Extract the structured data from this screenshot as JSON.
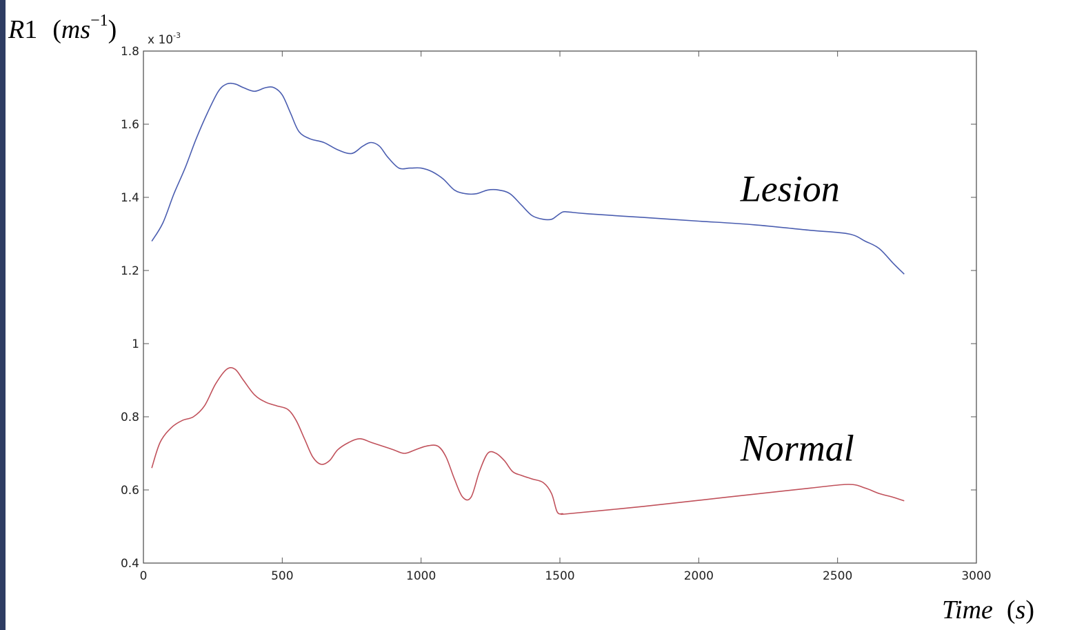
{
  "chart_data": {
    "type": "line",
    "ylabel": {
      "var": "R",
      "sub": "1",
      "unit_open": "(",
      "unit_var": "ms",
      "unit_exp": "−1",
      "unit_close": ")"
    },
    "xlabel": {
      "var": "Time",
      "unit_open": "(",
      "unit_var": "s",
      "unit_close": ")"
    },
    "y_exponent_label": {
      "prefix": "x 10",
      "exp": "-3"
    },
    "xlim": [
      0,
      3000
    ],
    "ylim": [
      0.4,
      1.8
    ],
    "x_ticks": [
      "0",
      "500",
      "1000",
      "1500",
      "2000",
      "2500",
      "3000"
    ],
    "y_ticks": [
      "0.4",
      "0.6",
      "0.8",
      "1",
      "1.2",
      "1.4",
      "1.6",
      "1.8"
    ],
    "grid": false,
    "annotations": [
      {
        "text": "Lesion",
        "x": 2150,
        "y": 1.39
      },
      {
        "text": "Normal",
        "x": 2150,
        "y": 0.68
      }
    ],
    "series": [
      {
        "key": "lesion",
        "color": "#4a5db0",
        "x": [
          30,
          70,
          110,
          150,
          190,
          230,
          270,
          300,
          330,
          360,
          400,
          440,
          470,
          500,
          530,
          560,
          600,
          650,
          700,
          750,
          790,
          820,
          850,
          880,
          920,
          960,
          1000,
          1040,
          1080,
          1120,
          1160,
          1200,
          1240,
          1280,
          1320,
          1360,
          1400,
          1440,
          1470,
          1490,
          1510,
          1530,
          1600,
          1800,
          2000,
          2200,
          2400,
          2540,
          2600,
          2650,
          2700,
          2740
        ],
        "y": [
          1.28,
          1.33,
          1.41,
          1.48,
          1.56,
          1.63,
          1.69,
          1.71,
          1.71,
          1.7,
          1.69,
          1.7,
          1.7,
          1.68,
          1.63,
          1.58,
          1.56,
          1.55,
          1.53,
          1.52,
          1.54,
          1.55,
          1.54,
          1.51,
          1.48,
          1.48,
          1.48,
          1.47,
          1.45,
          1.42,
          1.41,
          1.41,
          1.42,
          1.42,
          1.41,
          1.38,
          1.35,
          1.34,
          1.34,
          1.35,
          1.36,
          1.36,
          1.355,
          1.345,
          1.335,
          1.325,
          1.31,
          1.3,
          1.28,
          1.26,
          1.22,
          1.19
        ]
      },
      {
        "key": "normal",
        "color": "#c0505a",
        "x": [
          30,
          60,
          100,
          140,
          180,
          220,
          260,
          300,
          330,
          360,
          400,
          440,
          480,
          520,
          550,
          580,
          610,
          640,
          670,
          700,
          740,
          780,
          820,
          860,
          900,
          940,
          980,
          1020,
          1060,
          1090,
          1120,
          1150,
          1180,
          1210,
          1240,
          1270,
          1300,
          1330,
          1360,
          1400,
          1440,
          1470,
          1490,
          1510,
          1530,
          1800,
          2100,
          2400,
          2540,
          2600,
          2650,
          2700,
          2740
        ],
        "y": [
          0.66,
          0.73,
          0.77,
          0.79,
          0.8,
          0.83,
          0.89,
          0.93,
          0.93,
          0.9,
          0.86,
          0.84,
          0.83,
          0.82,
          0.79,
          0.74,
          0.69,
          0.67,
          0.68,
          0.71,
          0.73,
          0.74,
          0.73,
          0.72,
          0.71,
          0.7,
          0.71,
          0.72,
          0.72,
          0.69,
          0.63,
          0.58,
          0.58,
          0.65,
          0.7,
          0.7,
          0.68,
          0.65,
          0.64,
          0.63,
          0.62,
          0.59,
          0.54,
          0.535,
          0.535,
          0.555,
          0.58,
          0.605,
          0.615,
          0.605,
          0.59,
          0.58,
          0.57
        ]
      }
    ]
  }
}
